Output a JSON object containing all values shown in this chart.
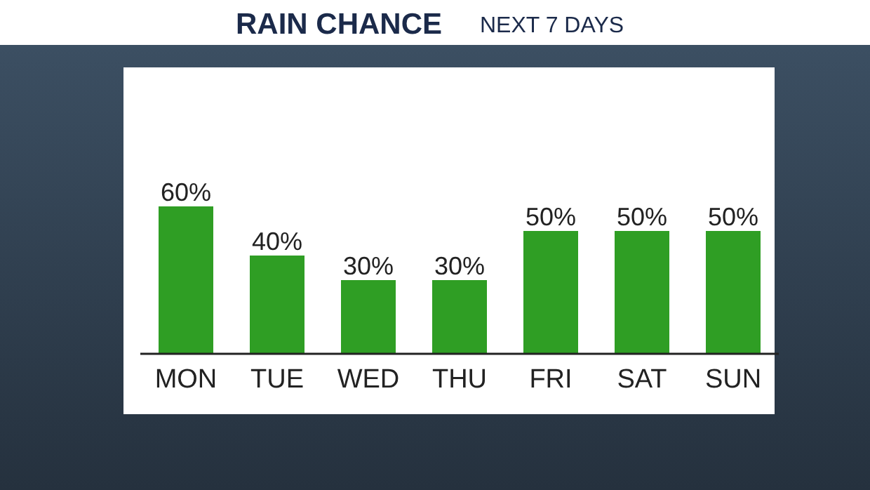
{
  "chart_data": {
    "type": "bar",
    "title": "RAIN CHANCE",
    "subtitle": "NEXT 7 DAYS",
    "categories": [
      "MON",
      "TUE",
      "WED",
      "THU",
      "FRI",
      "SAT",
      "SUN"
    ],
    "values": [
      60,
      40,
      30,
      30,
      50,
      50,
      50
    ],
    "value_labels": [
      "60%",
      "40%",
      "30%",
      "30%",
      "50%",
      "50%",
      "50%"
    ],
    "color": "#2f9e24"
  }
}
